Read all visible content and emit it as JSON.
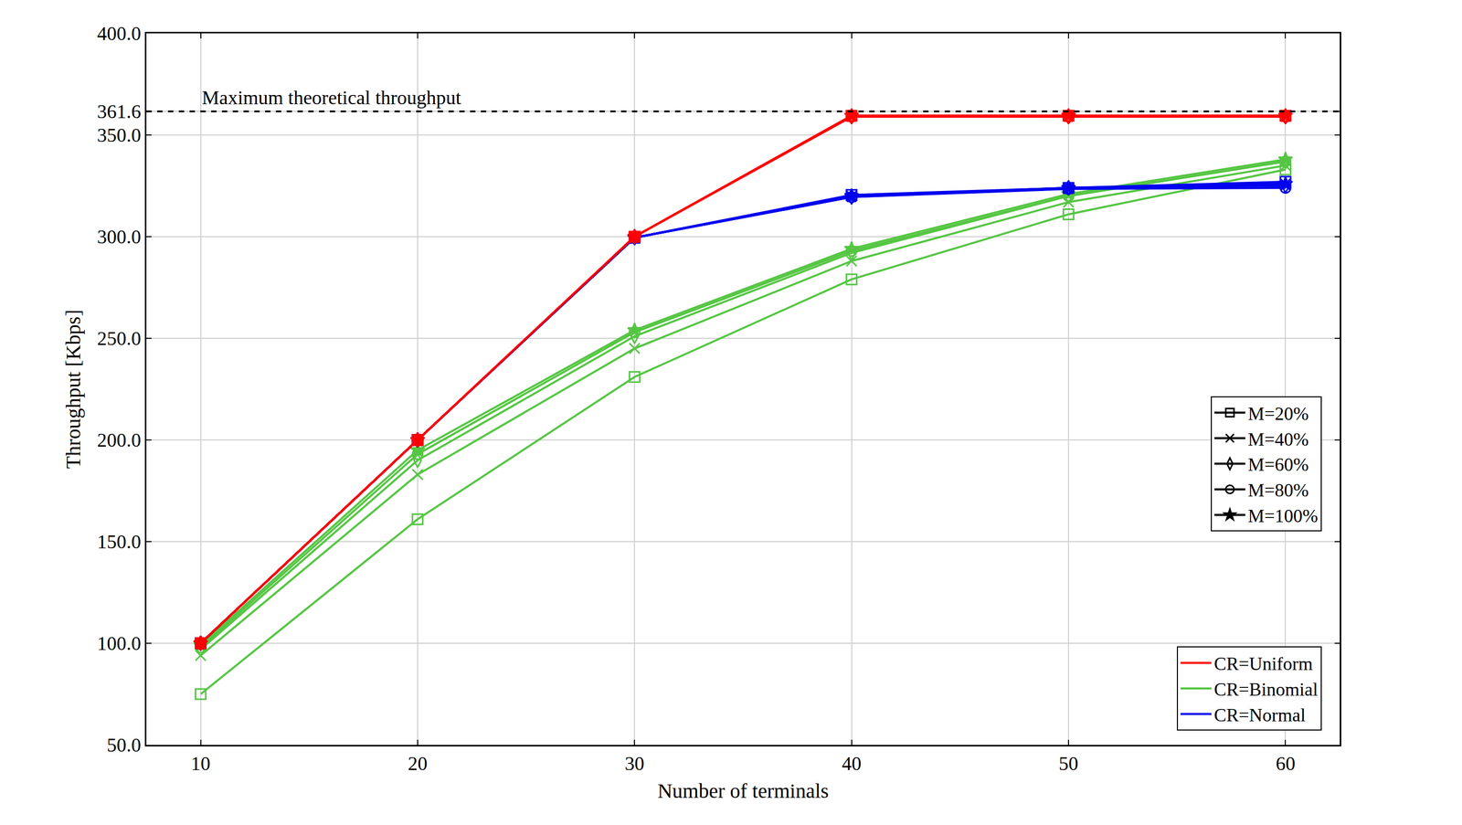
{
  "chart_data": {
    "type": "line",
    "xlabel": "Number of terminals",
    "ylabel": "Throughput [Kbps]",
    "x": [
      10,
      20,
      30,
      40,
      50,
      60
    ],
    "xlim": [
      7.5,
      62.5
    ],
    "xticks": [
      10,
      20,
      30,
      40,
      50,
      60
    ],
    "ylim": [
      50,
      400
    ],
    "yticks": [
      {
        "value": 50,
        "label": "50.0"
      },
      {
        "value": 100,
        "label": "100.0"
      },
      {
        "value": 150,
        "label": "150.0"
      },
      {
        "value": 200,
        "label": "200.0"
      },
      {
        "value": 250,
        "label": "250.0"
      },
      {
        "value": 300,
        "label": "300.0"
      },
      {
        "value": 350,
        "label": "350.0"
      },
      {
        "value": 361.6,
        "label": "361.6"
      },
      {
        "value": 400,
        "label": "400.0"
      }
    ],
    "grid": true,
    "legend": "lower right",
    "reference_line": {
      "value": 361.6,
      "label": "Maximum theoretical throughput",
      "line_style": "dash",
      "color": "#000000"
    },
    "markers": [
      {
        "label": "M=20%",
        "marker": "square-open"
      },
      {
        "label": "M=40%",
        "marker": "x-thin-open"
      },
      {
        "label": "M=60%",
        "marker": "diamond-tall-open"
      },
      {
        "label": "M=80%",
        "marker": "circle-open"
      },
      {
        "label": "M=100%",
        "marker": "star"
      }
    ],
    "series": [
      {
        "name": "CR=Uniform",
        "color": "#ff0000",
        "runs": [
          {
            "label": "M=20%",
            "values": [
              100,
              200,
              300,
              359.5,
              359.5,
              359.5
            ]
          },
          {
            "label": "M=40%",
            "values": [
              100,
              200,
              300,
              359.5,
              359.5,
              359.5
            ]
          },
          {
            "label": "M=60%",
            "values": [
              100,
              200,
              300,
              359,
              359,
              359
            ]
          },
          {
            "label": "M=80%",
            "values": [
              100,
              200,
              300,
              359,
              359,
              359
            ]
          },
          {
            "label": "M=100%",
            "values": [
              100,
              200,
              300,
              359.5,
              359.5,
              359.5
            ]
          }
        ]
      },
      {
        "name": "CR=Binomial",
        "color": "#55c643",
        "runs": [
          {
            "label": "M=20%",
            "values": [
              75,
              161,
              231,
              279,
              311,
              333
            ]
          },
          {
            "label": "M=40%",
            "values": [
              94,
              183,
              245,
              288,
              317,
              335
            ]
          },
          {
            "label": "M=60%",
            "values": [
              97,
              190,
              251,
              292,
              320,
              337
            ]
          },
          {
            "label": "M=80%",
            "values": [
              98,
              193,
              253,
              293,
              320,
              337
            ]
          },
          {
            "label": "M=100%",
            "values": [
              99,
              195,
              254,
              294,
              321,
              338
            ]
          }
        ]
      },
      {
        "name": "CR=Normal",
        "color": "#0000ee",
        "runs": [
          {
            "label": "M=20%",
            "values": [
              100,
              200,
              299.5,
              320.5,
              324,
              327
            ]
          },
          {
            "label": "M=40%",
            "values": [
              100,
              200,
              299.5,
              320,
              324,
              326
            ]
          },
          {
            "label": "M=60%",
            "values": [
              100,
              200,
              299.5,
              319.5,
              324,
              325
            ]
          },
          {
            "label": "M=80%",
            "values": [
              100,
              200,
              299.5,
              319.5,
              323.5,
              324
            ]
          },
          {
            "label": "M=100%",
            "values": [
              100,
              200,
              299.5,
              320,
              324,
              326
            ]
          }
        ]
      }
    ]
  }
}
